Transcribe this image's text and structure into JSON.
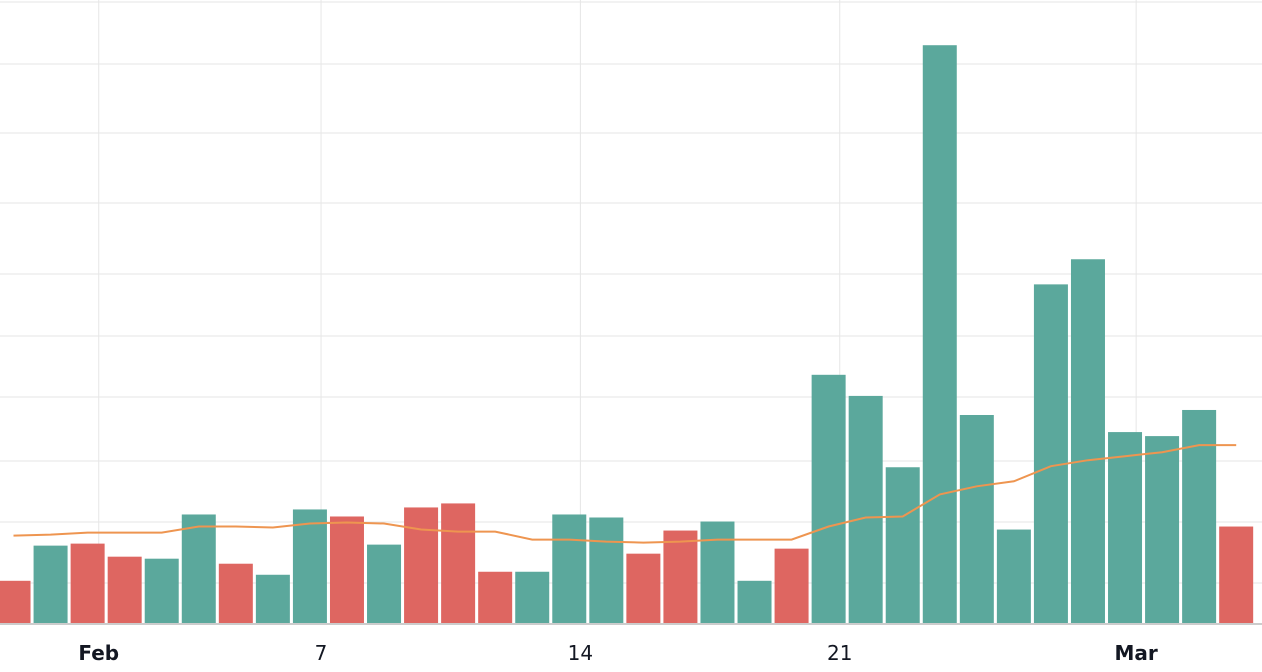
{
  "chart_data": {
    "type": "bar",
    "title": "",
    "xlabel": "",
    "ylabel": "",
    "grid": true,
    "colors": {
      "up": "#5BA89C",
      "down": "#DE6661",
      "line": "#EE9550",
      "grid": "#e6e6e6",
      "axis": "#cccccc"
    },
    "x_ticks": [
      {
        "label": "Feb",
        "index": 2.3,
        "bold": true
      },
      {
        "label": "7",
        "index": 8.3,
        "bold": false
      },
      {
        "label": "14",
        "index": 15.3,
        "bold": false
      },
      {
        "label": "21",
        "index": 22.3,
        "bold": false
      },
      {
        "label": "Mar",
        "index": 30.3,
        "bold": true
      }
    ],
    "bars": [
      {
        "value": 42,
        "dir": "down"
      },
      {
        "value": 77,
        "dir": "up"
      },
      {
        "value": 79,
        "dir": "down"
      },
      {
        "value": 66,
        "dir": "down"
      },
      {
        "value": 64,
        "dir": "up"
      },
      {
        "value": 108,
        "dir": "up"
      },
      {
        "value": 59,
        "dir": "down"
      },
      {
        "value": 48,
        "dir": "up"
      },
      {
        "value": 113,
        "dir": "up"
      },
      {
        "value": 106,
        "dir": "down"
      },
      {
        "value": 78,
        "dir": "up"
      },
      {
        "value": 115,
        "dir": "down"
      },
      {
        "value": 119,
        "dir": "down"
      },
      {
        "value": 51,
        "dir": "down"
      },
      {
        "value": 51,
        "dir": "up"
      },
      {
        "value": 108,
        "dir": "up"
      },
      {
        "value": 105,
        "dir": "up"
      },
      {
        "value": 69,
        "dir": "down"
      },
      {
        "value": 92,
        "dir": "down"
      },
      {
        "value": 101,
        "dir": "up"
      },
      {
        "value": 42,
        "dir": "up"
      },
      {
        "value": 74,
        "dir": "down"
      },
      {
        "value": 247,
        "dir": "up"
      },
      {
        "value": 226,
        "dir": "up"
      },
      {
        "value": 155,
        "dir": "up"
      },
      {
        "value": 575,
        "dir": "up"
      },
      {
        "value": 207,
        "dir": "up"
      },
      {
        "value": 93,
        "dir": "up"
      },
      {
        "value": 337,
        "dir": "up"
      },
      {
        "value": 362,
        "dir": "up"
      },
      {
        "value": 190,
        "dir": "up"
      },
      {
        "value": 186,
        "dir": "up"
      },
      {
        "value": 212,
        "dir": "up"
      },
      {
        "value": 96,
        "dir": "down"
      }
    ],
    "moving_average": [
      87,
      88,
      90,
      90,
      90,
      96,
      96,
      95,
      99,
      100,
      99,
      93,
      91,
      91,
      83,
      83,
      81,
      80,
      81,
      83,
      83,
      83,
      96,
      105,
      106,
      128,
      136,
      141,
      156,
      162,
      166,
      170,
      177,
      177
    ],
    "ylim": [
      0,
      620
    ]
  }
}
